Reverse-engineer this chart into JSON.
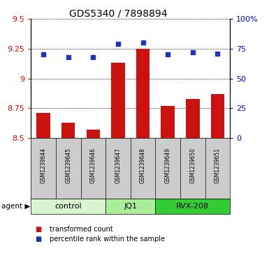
{
  "title": "GDS5340 / 7898894",
  "samples": [
    "GSM1239644",
    "GSM1239645",
    "GSM1239646",
    "GSM1239647",
    "GSM1239648",
    "GSM1239649",
    "GSM1239650",
    "GSM1239651"
  ],
  "bar_values": [
    8.71,
    8.63,
    8.57,
    9.13,
    9.25,
    8.77,
    8.83,
    8.87
  ],
  "dot_values": [
    70,
    68,
    68,
    79,
    80,
    70,
    72,
    71
  ],
  "bar_bottom": 8.5,
  "ylim_left": [
    8.5,
    9.5
  ],
  "ylim_right": [
    0,
    100
  ],
  "yticks_left": [
    8.5,
    8.75,
    9.0,
    9.25,
    9.5
  ],
  "ytick_labels_left": [
    "8.5",
    "8.75",
    "9",
    "9.25",
    "9.5"
  ],
  "yticks_right": [
    0,
    25,
    50,
    75,
    100
  ],
  "ytick_labels_right": [
    "0",
    "25",
    "50",
    "75",
    "100%"
  ],
  "bar_color": "#cc1111",
  "dot_color": "#2233bb",
  "agent_groups": [
    {
      "label": "control",
      "start": 0,
      "end": 3,
      "color": "#d8f5d0"
    },
    {
      "label": "JQ1",
      "start": 3,
      "end": 5,
      "color": "#aaee99"
    },
    {
      "label": "RVX-208",
      "start": 5,
      "end": 8,
      "color": "#33cc33"
    }
  ],
  "legend_items": [
    {
      "color": "#cc1111",
      "label": "transformed count"
    },
    {
      "color": "#2233bb",
      "label": "percentile rank within the sample"
    }
  ],
  "background_color": "#cccccc",
  "plot_bg": "white"
}
